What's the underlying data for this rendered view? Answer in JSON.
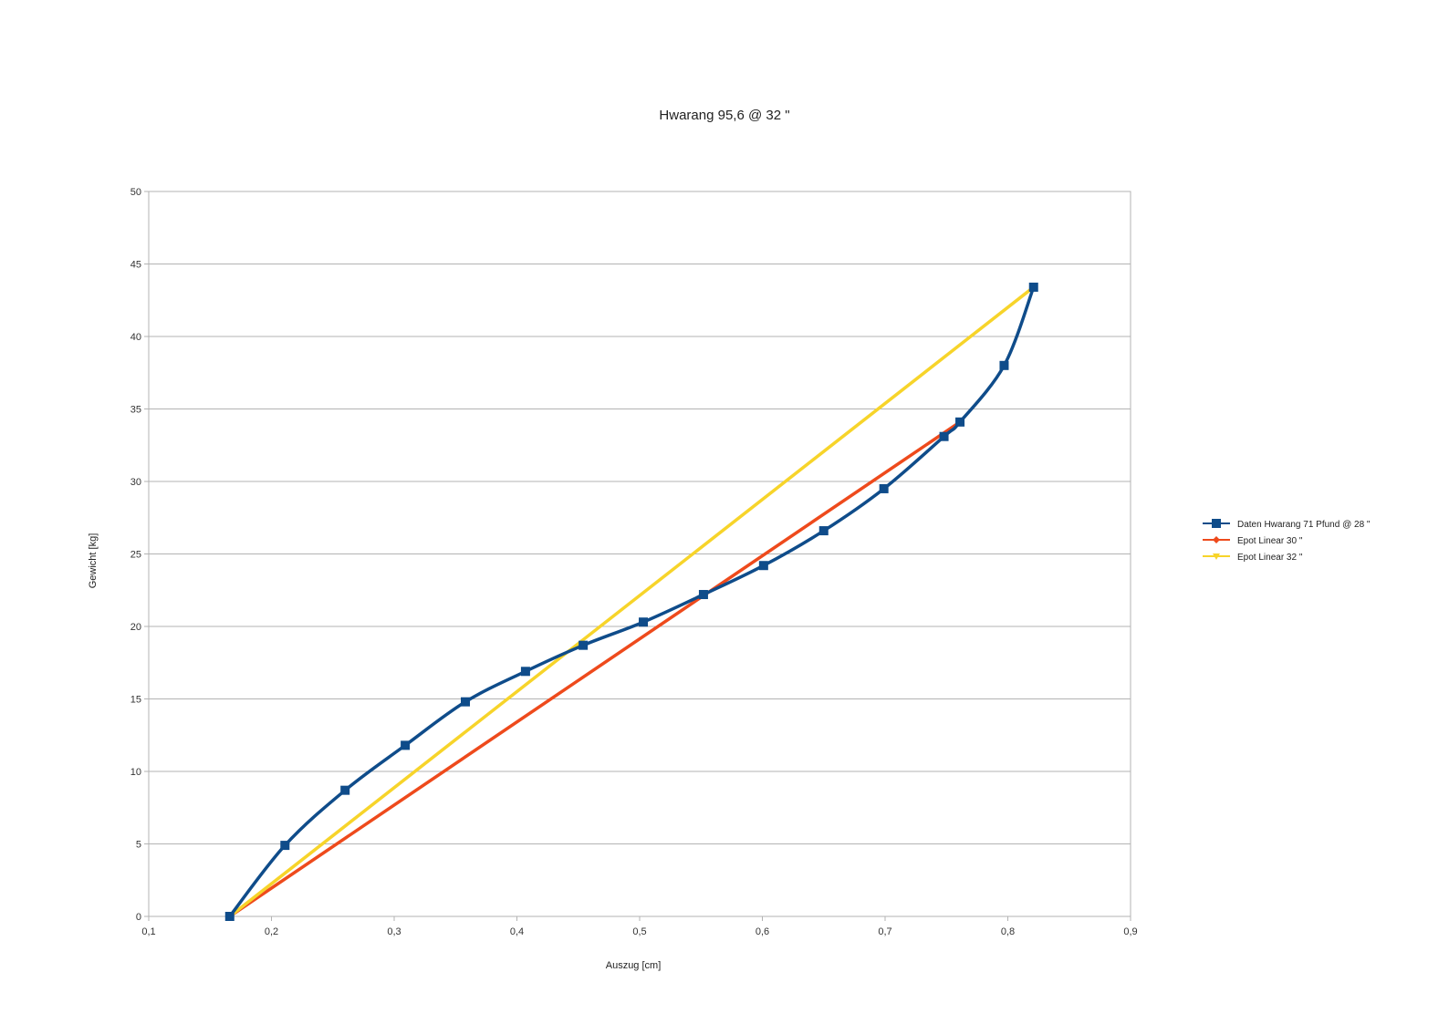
{
  "chart_data": {
    "type": "line",
    "title": "Hwarang 95,6 @ 32 \"",
    "xlabel": "Auszug [cm]",
    "ylabel": "Gewicht [kg]",
    "xlim": [
      0.1,
      0.9
    ],
    "ylim": [
      0,
      50
    ],
    "xticks": [
      "0,1",
      "0,2",
      "0,3",
      "0,4",
      "0,5",
      "0,6",
      "0,7",
      "0,8",
      "0,9"
    ],
    "yticks": [
      "0",
      "5",
      "10",
      "15",
      "20",
      "25",
      "30",
      "35",
      "40",
      "45",
      "50"
    ],
    "grid": "horizontal",
    "legend_position": "right",
    "series": [
      {
        "name": "Daten Hwarang 71 Pfund @ 28 \"",
        "color": "#0f4c8a",
        "marker": "square",
        "smooth": true,
        "x": [
          0.166,
          0.211,
          0.26,
          0.309,
          0.358,
          0.407,
          0.454,
          0.503,
          0.552,
          0.601,
          0.65,
          0.699,
          0.748,
          0.761,
          0.797,
          0.821
        ],
        "y": [
          0,
          4.9,
          8.7,
          11.8,
          14.8,
          16.9,
          18.7,
          20.3,
          22.2,
          24.2,
          26.6,
          29.5,
          33.1,
          34.1,
          38.0,
          43.4
        ]
      },
      {
        "name": "Epot Linear 30 \"",
        "color": "#ee4a1c",
        "marker": "diamond",
        "smooth": false,
        "x": [
          0.166,
          0.761
        ],
        "y": [
          0,
          34.1
        ]
      },
      {
        "name": "Epot Linear 32 \"",
        "color": "#f7d42a",
        "marker": "triangle",
        "smooth": false,
        "x": [
          0.166,
          0.821
        ],
        "y": [
          0,
          43.4
        ]
      }
    ]
  }
}
